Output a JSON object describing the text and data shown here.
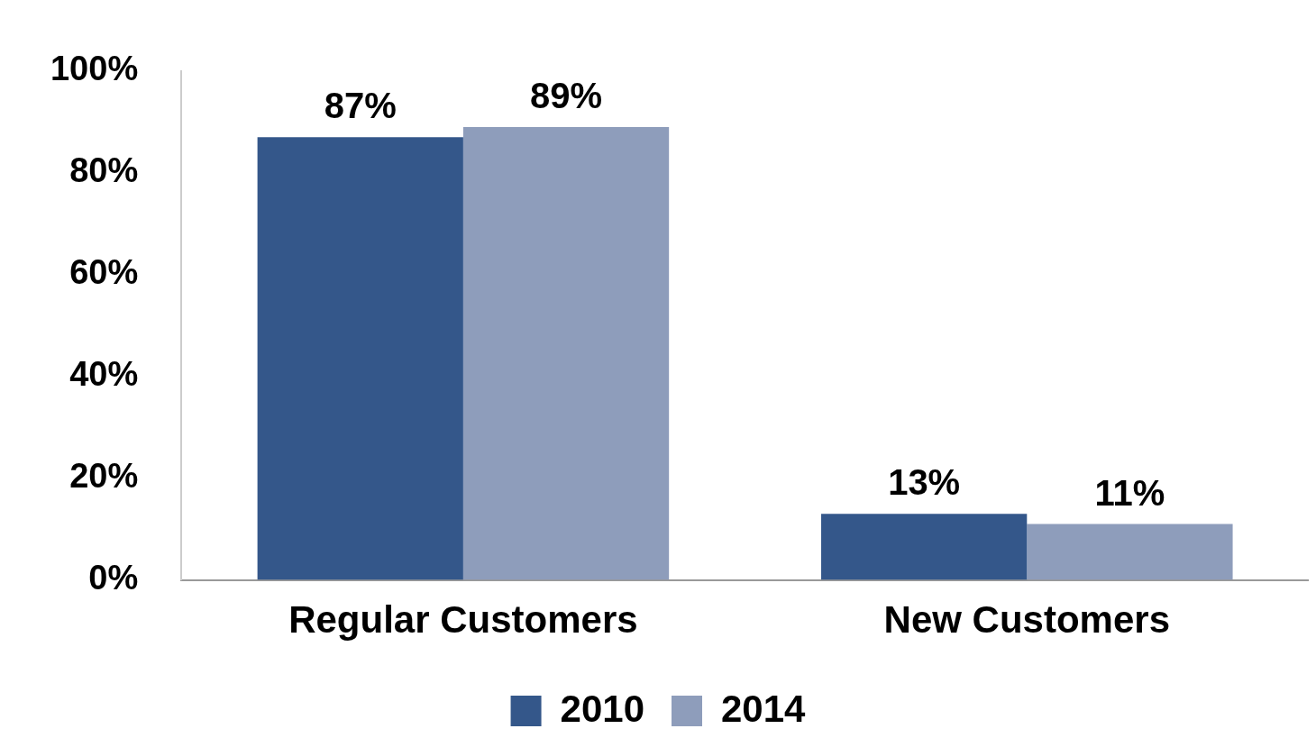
{
  "chart_data": {
    "type": "bar",
    "categories": [
      "Regular Customers",
      "New Customers"
    ],
    "series": [
      {
        "name": "2010",
        "color": "#34578a",
        "values": [
          87,
          13
        ],
        "value_labels": [
          "87%",
          "13%"
        ]
      },
      {
        "name": "2014",
        "color": "#8e9dbb",
        "values": [
          89,
          11
        ],
        "value_labels": [
          "89%",
          "11%"
        ]
      }
    ],
    "ylim": [
      0,
      100
    ],
    "yticks": [
      {
        "value": 0,
        "label": "0%"
      },
      {
        "value": 20,
        "label": "20%"
      },
      {
        "value": 40,
        "label": "40%"
      },
      {
        "value": 60,
        "label": "60%"
      },
      {
        "value": 80,
        "label": "80%"
      },
      {
        "value": 100,
        "label": "100%"
      }
    ],
    "grid": false,
    "legend": "bottom"
  }
}
